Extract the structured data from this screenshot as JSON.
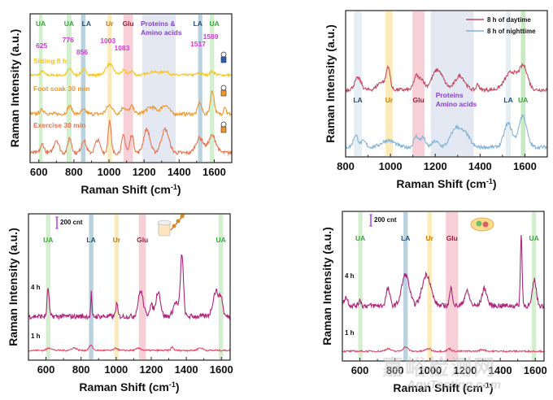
{
  "chart_data": [
    {
      "id": "a",
      "type": "line",
      "xlabel": "Raman Shift (cm-1)",
      "ylabel": "Raman Intensity (a.u.)",
      "xlim": [
        550,
        1700
      ],
      "xticks": [
        600,
        800,
        1000,
        1200,
        1400,
        1600
      ],
      "bands": [
        {
          "label": "UA",
          "from": 600,
          "to": 622,
          "color": "#c9ebc4",
          "label_color": "#3aa33a"
        },
        {
          "label": "UA",
          "from": 758,
          "to": 786,
          "color": "#c9ebc4",
          "label_color": "#3aa33a"
        },
        {
          "label": "LA",
          "from": 840,
          "to": 866,
          "color": "#a9c6d6",
          "label_color": "#1f4e79"
        },
        {
          "label": "Ur",
          "from": 992,
          "to": 1016,
          "color": "#fbe6a9",
          "label_color": "#cc7a00"
        },
        {
          "label": "Glu",
          "from": 1082,
          "to": 1137,
          "color": "#f5c3cc",
          "label_color": "#a0203a"
        },
        {
          "label": "Proteins & Amino acids",
          "from": 1190,
          "to": 1380,
          "color": "#dde2f0",
          "label_color": "#8a3fd0"
        },
        {
          "label": "LA",
          "from": 1508,
          "to": 1532,
          "color": "#a9c6d6",
          "label_color": "#1f4e79"
        },
        {
          "label": "UA",
          "from": 1574,
          "to": 1600,
          "color": "#c9ebc4",
          "label_color": "#3aa33a"
        }
      ],
      "peak_labels": [
        {
          "x": 625,
          "text": "625"
        },
        {
          "x": 776,
          "text": "776"
        },
        {
          "x": 856,
          "text": "856"
        },
        {
          "x": 1003,
          "text": "1003"
        },
        {
          "x": 1083,
          "text": "1083"
        },
        {
          "x": 1517,
          "text": "1517"
        },
        {
          "x": 1589,
          "text": "1589"
        }
      ],
      "peak_label_color": "#d63ad6",
      "series": [
        {
          "name": "Sitting 8 h",
          "color": "#f5c518",
          "offset": 2.0,
          "scale": 0.35,
          "peaks": [
            [
              620,
              0.3,
              15
            ],
            [
              776,
              0.45,
              18
            ],
            [
              856,
              0.4,
              20
            ],
            [
              1003,
              0.8,
              30
            ],
            [
              1083,
              0.35,
              20
            ],
            [
              1130,
              0.3,
              15
            ],
            [
              1250,
              0.25,
              40
            ],
            [
              1320,
              0.25,
              30
            ],
            [
              1517,
              0.15,
              20
            ],
            [
              1589,
              0.25,
              20
            ]
          ]
        },
        {
          "name": "Foot soak 30 min",
          "color": "#f0962a",
          "offset": 1.0,
          "scale": 0.5,
          "peaks": [
            [
              620,
              0.2,
              20
            ],
            [
              776,
              0.4,
              18
            ],
            [
              856,
              0.2,
              20
            ],
            [
              1003,
              0.45,
              25
            ],
            [
              1083,
              0.35,
              20
            ],
            [
              1130,
              0.4,
              18
            ],
            [
              1240,
              0.35,
              40
            ],
            [
              1320,
              0.45,
              30
            ],
            [
              1517,
              0.6,
              15
            ],
            [
              1589,
              1.2,
              15
            ],
            [
              1660,
              0.4,
              10
            ]
          ]
        },
        {
          "name": "Exercise 30 min",
          "color": "#e8744f",
          "offset": 0.0,
          "scale": 0.55,
          "peaks": [
            [
              620,
              0.4,
              15
            ],
            [
              700,
              0.6,
              20
            ],
            [
              776,
              0.7,
              15
            ],
            [
              856,
              0.6,
              18
            ],
            [
              935,
              0.6,
              20
            ],
            [
              1003,
              1.5,
              12
            ],
            [
              1083,
              0.8,
              15
            ],
            [
              1130,
              0.85,
              15
            ],
            [
              1215,
              1.1,
              25
            ],
            [
              1320,
              1.1,
              30
            ],
            [
              1517,
              0.7,
              30
            ],
            [
              1589,
              0.8,
              30
            ]
          ]
        }
      ]
    },
    {
      "id": "b",
      "type": "line",
      "xlabel": "Raman Shift (cm-1)",
      "ylabel": "Raman Intensity (a.u.)",
      "xlim": [
        800,
        1700
      ],
      "xticks": [
        800,
        1000,
        1200,
        1400,
        1600
      ],
      "legend": {
        "placement": "top-right",
        "entries": [
          "8 h of daytime",
          "8 h of nighttime"
        ]
      },
      "bands": [
        {
          "label": "LA",
          "from": 837,
          "to": 872,
          "color": "#dfeaf0",
          "label_color": "#1f4e79"
        },
        {
          "label": "Ur",
          "from": 978,
          "to": 1010,
          "color": "#fbe6a9",
          "label_color": "#cc7a00"
        },
        {
          "label": "Glu",
          "from": 1098,
          "to": 1152,
          "color": "#f5c3cc",
          "label_color": "#a0203a"
        },
        {
          "label": "Proteins Amino acids",
          "from": 1180,
          "to": 1372,
          "color": "#dde2f0",
          "label_color": "#8a3fd0"
        },
        {
          "label": "LA",
          "from": 1515,
          "to": 1537,
          "color": "#dfeaf0",
          "label_color": "#1f4e79"
        },
        {
          "label": "UA",
          "from": 1582,
          "to": 1602,
          "color": "#b9e6b0",
          "label_color": "#3aa33a"
        }
      ],
      "series": [
        {
          "name": "8 h of daytime",
          "color": "#c44a62",
          "offset": 1.6,
          "scale": 0.55,
          "peaks": [
            [
              855,
              0.6,
              20
            ],
            [
              990,
              1.1,
              12
            ],
            [
              960,
              0.4,
              25
            ],
            [
              1115,
              0.7,
              15
            ],
            [
              1140,
              0.5,
              15
            ],
            [
              1210,
              1.0,
              35
            ],
            [
              1310,
              0.7,
              30
            ],
            [
              1390,
              0.3,
              8
            ],
            [
              1540,
              0.9,
              40
            ],
            [
              1595,
              1.1,
              25
            ]
          ]
        },
        {
          "name": "8 h of nighttime",
          "color": "#82b4d6",
          "offset": 0.0,
          "scale": 0.55,
          "peaks": [
            [
              845,
              0.6,
              15
            ],
            [
              880,
              0.3,
              15
            ],
            [
              990,
              0.35,
              40
            ],
            [
              1115,
              0.55,
              15
            ],
            [
              1145,
              0.5,
              15
            ],
            [
              1200,
              0.3,
              20
            ],
            [
              1295,
              1.0,
              35
            ],
            [
              1340,
              0.5,
              25
            ],
            [
              1525,
              1.2,
              25
            ],
            [
              1590,
              1.6,
              25
            ]
          ]
        }
      ]
    },
    {
      "id": "c",
      "type": "line",
      "xlabel": "Raman Shift (cm-1)",
      "ylabel": "Raman Intensity (a.u.)",
      "xlim": [
        500,
        1650
      ],
      "xticks": [
        600,
        800,
        1000,
        1200,
        1400,
        1600
      ],
      "scale_bar": "200 cnt",
      "bands": [
        {
          "label": "UA",
          "from": 600,
          "to": 625,
          "color": "#c9ebc4",
          "label_color": "#3aa33a"
        },
        {
          "label": "LA",
          "from": 845,
          "to": 870,
          "color": "#a9c6d6",
          "label_color": "#1f4e79"
        },
        {
          "label": "Ur",
          "from": 990,
          "to": 1015,
          "color": "#fbe6a9",
          "label_color": "#cc7a00"
        },
        {
          "label": "Glu",
          "from": 1130,
          "to": 1170,
          "color": "#f5c3cc",
          "label_color": "#a0203a"
        },
        {
          "label": "UA",
          "from": 1585,
          "to": 1610,
          "color": "#c9ebc4",
          "label_color": "#3aa33a"
        }
      ],
      "series": [
        {
          "name": "4 h",
          "color": "#b0237a",
          "offset": 1.2,
          "scale": 1.0,
          "peaks": [
            [
              612,
              1.0,
              8
            ],
            [
              858,
              0.9,
              4
            ],
            [
              1003,
              0.45,
              8
            ],
            [
              1140,
              0.9,
              20
            ],
            [
              1240,
              0.9,
              18
            ],
            [
              1200,
              0.4,
              15
            ],
            [
              1375,
              2.2,
              12
            ],
            [
              1340,
              0.5,
              20
            ],
            [
              1570,
              0.9,
              25
            ],
            [
              1600,
              0.5,
              12
            ]
          ]
        },
        {
          "name": "1 h",
          "color": "#e04868",
          "offset": 0.0,
          "scale": 0.3,
          "peaks": [
            [
              620,
              0.3,
              20
            ],
            [
              760,
              0.3,
              20
            ],
            [
              856,
              0.6,
              15
            ],
            [
              1000,
              0.25,
              15
            ],
            [
              1130,
              0.25,
              20
            ],
            [
              1320,
              0.4,
              10
            ],
            [
              1480,
              0.3,
              20
            ]
          ]
        }
      ]
    },
    {
      "id": "d",
      "type": "line",
      "xlabel": "Raman Shift (cm-1)",
      "ylabel": "Raman Intensity (a.u.)",
      "xlim": [
        500,
        1650
      ],
      "xticks": [
        600,
        800,
        1000,
        1200,
        1400,
        1600
      ],
      "scale_bar": "200 cnt",
      "bands": [
        {
          "label": "UA",
          "from": 590,
          "to": 615,
          "color": "#c9ebc4",
          "label_color": "#3aa33a"
        },
        {
          "label": "LA",
          "from": 848,
          "to": 873,
          "color": "#a9c6d6",
          "label_color": "#1f4e79"
        },
        {
          "label": "Ur",
          "from": 985,
          "to": 1010,
          "color": "#fbe6a9",
          "label_color": "#cc7a00"
        },
        {
          "label": "Glu",
          "from": 1090,
          "to": 1160,
          "color": "#f5c3cc",
          "label_color": "#a0203a"
        },
        {
          "label": "UA",
          "from": 1580,
          "to": 1605,
          "color": "#c9ebc4",
          "label_color": "#3aa33a"
        }
      ],
      "series": [
        {
          "name": "4 h",
          "color": "#b0237a",
          "offset": 1.6,
          "scale": 1.0,
          "peaks": [
            [
              520,
              0.3,
              15
            ],
            [
              600,
              0.25,
              8
            ],
            [
              760,
              0.6,
              15
            ],
            [
              860,
              1.1,
              30
            ],
            [
              980,
              1.1,
              35
            ],
            [
              1120,
              0.6,
              12
            ],
            [
              1210,
              0.5,
              20
            ],
            [
              1310,
              0.6,
              20
            ],
            [
              1520,
              2.5,
              7
            ],
            [
              1595,
              0.9,
              15
            ]
          ]
        },
        {
          "name": "1 h",
          "color": "#e04868",
          "offset": 0.0,
          "scale": 0.3,
          "peaks": [
            [
              760,
              0.3,
              20
            ],
            [
              860,
              0.5,
              20
            ],
            [
              990,
              0.3,
              20
            ],
            [
              1110,
              0.3,
              15
            ],
            [
              1300,
              0.2,
              20
            ]
          ]
        }
      ]
    }
  ],
  "watermark": {
    "cn": "嘉峪检测网",
    "en": "AnyTesting.com"
  }
}
